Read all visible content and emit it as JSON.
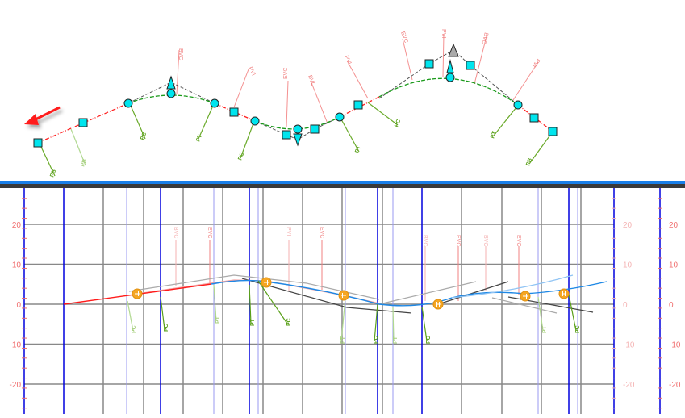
{
  "plan_view": {
    "direction_arrow": "arrow-left-down-icon",
    "station_labels": [
      {
        "text": "BVC"
      },
      {
        "text": "PVI"
      },
      {
        "text": "EVC"
      },
      {
        "text": "BVC"
      },
      {
        "text": "PVI"
      },
      {
        "text": "EVC"
      },
      {
        "text": "PVI"
      },
      {
        "text": "BVC"
      },
      {
        "text": "PVI"
      }
    ],
    "geometry_labels": [
      {
        "text": "PB"
      },
      {
        "text": "PB"
      },
      {
        "text": "PC"
      },
      {
        "text": "PT"
      },
      {
        "text": "PC"
      },
      {
        "text": "PT"
      },
      {
        "text": "PC"
      },
      {
        "text": "PT"
      },
      {
        "text": "PB"
      }
    ]
  },
  "profile_view": {
    "y_ticks": [
      "20",
      "10",
      "0",
      "-10",
      "-20"
    ],
    "vertical_labels": [
      {
        "text": "BVC"
      },
      {
        "text": "EVC"
      },
      {
        "text": "PVI"
      },
      {
        "text": "EVC"
      },
      {
        "text": "BVC"
      },
      {
        "text": "EVC"
      },
      {
        "text": "BVC"
      },
      {
        "text": "EVC"
      }
    ],
    "geometry_labels": [
      {
        "text": "PC"
      },
      {
        "text": "PC"
      },
      {
        "text": "PT"
      },
      {
        "text": "PT"
      },
      {
        "text": "PC"
      },
      {
        "text": "PT"
      },
      {
        "text": "PC"
      },
      {
        "text": "PT"
      },
      {
        "text": "PC"
      },
      {
        "text": "PT"
      },
      {
        "text": "PC"
      }
    ]
  },
  "colors": {
    "splitter": "#1a7fe8",
    "tangent": "#ff0000",
    "curve": "#1a8a1a",
    "profile_line": "#1e88e5",
    "marker": "#00e5ee",
    "pi_marker": "#f5a623",
    "grid_major": "#0000dd",
    "grid_minor": "#808080"
  }
}
